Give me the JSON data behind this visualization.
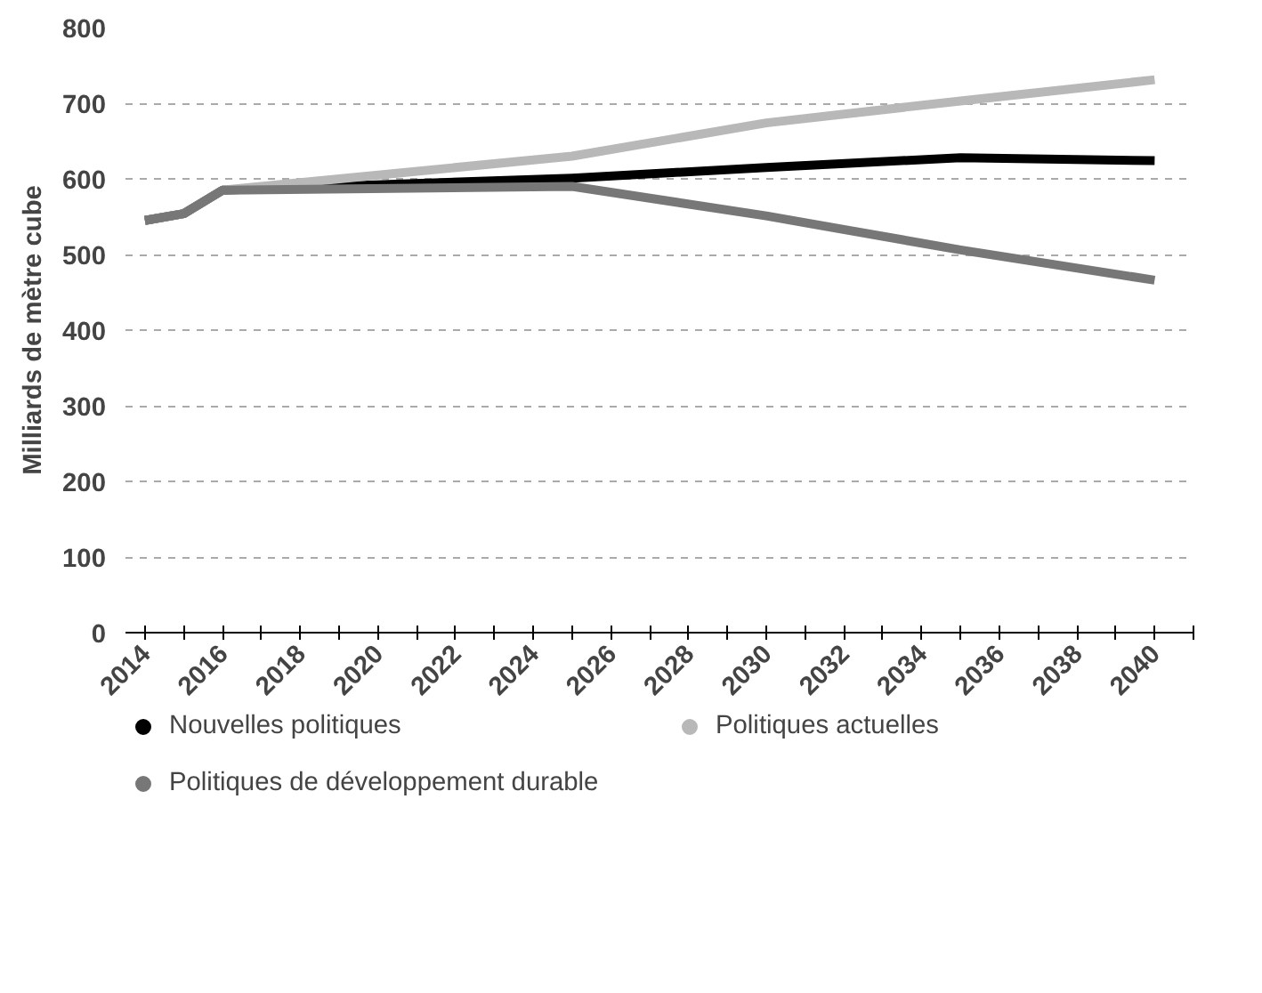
{
  "chart_data": {
    "type": "line",
    "ylabel": "Milliards de mètre cube",
    "x": [
      2014,
      2015,
      2016,
      2025,
      2030,
      2035,
      2040
    ],
    "series": [
      {
        "name": "Nouvelles politiques",
        "color": "#000000",
        "values": [
          545,
          554,
          585,
          601,
          615,
          628,
          624
        ]
      },
      {
        "name": "Politiques actuelles",
        "color": "#b8b8b8",
        "values": [
          545,
          554,
          585,
          630,
          674,
          703,
          731
        ]
      },
      {
        "name": "Politiques de développement durable",
        "color": "#777777",
        "values": [
          545,
          554,
          585,
          590,
          551,
          506,
          466
        ]
      }
    ],
    "xlim": [
      2013.5,
      2041
    ],
    "xticks": [
      2014,
      2016,
      2018,
      2020,
      2022,
      2024,
      2026,
      2028,
      2030,
      2032,
      2034,
      2036,
      2038,
      2040
    ],
    "ylim": [
      0,
      800
    ],
    "yticks": [
      0,
      100,
      200,
      300,
      400,
      500,
      600,
      700,
      800
    ],
    "grid": "y",
    "legend": "bottom",
    "marker": "none",
    "line_style": "solid"
  }
}
